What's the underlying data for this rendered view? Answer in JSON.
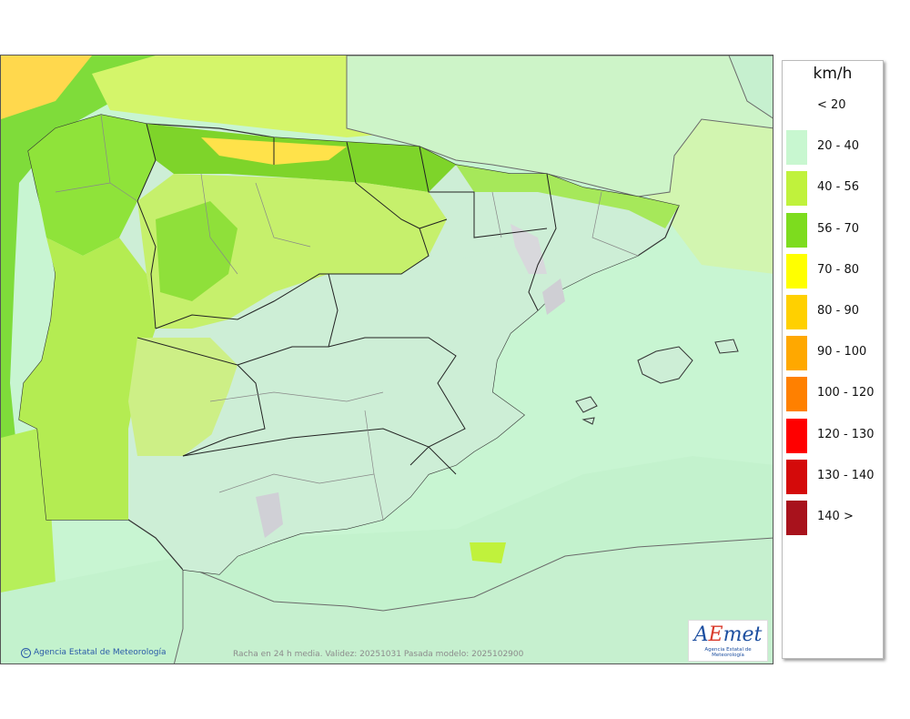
{
  "legend": {
    "unit": "km/h",
    "classes": [
      {
        "label": "< 20",
        "color": ""
      },
      {
        "label": "20 - 40",
        "color": "#c8f7d0"
      },
      {
        "label": "40 - 56",
        "color": "#c0f23c"
      },
      {
        "label": "56 - 70",
        "color": "#7ddc1e"
      },
      {
        "label": "70 - 80",
        "color": "#ffff00"
      },
      {
        "label": "80 - 90",
        "color": "#ffd000"
      },
      {
        "label": "90 - 100",
        "color": "#ffa800"
      },
      {
        "label": "100 - 120",
        "color": "#ff8000"
      },
      {
        "label": "120 - 130",
        "color": "#ff0000"
      },
      {
        "label": "130 - 140",
        "color": "#d40a0a"
      },
      {
        "label": "140 >",
        "color": "#a8121c"
      }
    ]
  },
  "map": {
    "copyright": "Agencia Estatal de Meteorología",
    "caption": "Racha en 24 h media. Validez: 20251031 Pasada modelo: 2025102900",
    "logo_mark_1": "A",
    "logo_mark_2": "E",
    "logo_mark_3": "met",
    "logo_text": "Agencia Estatal de Meteorología",
    "land_color": "#cbefd6",
    "sea_color": "#c8f5d2"
  }
}
